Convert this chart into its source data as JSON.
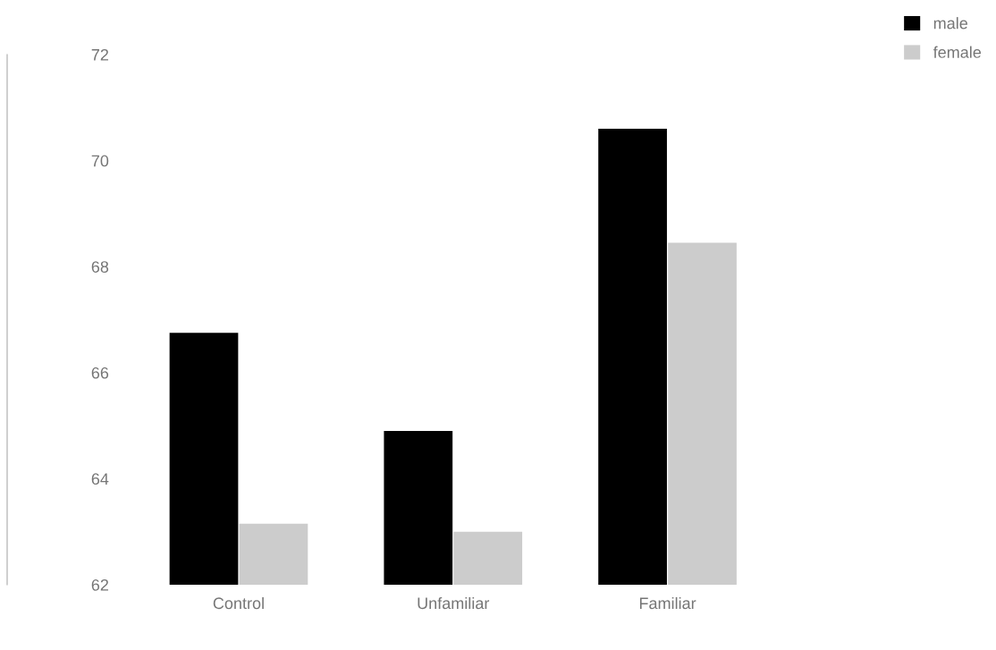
{
  "chart_data": {
    "type": "bar",
    "categories": [
      "Control",
      "Unfamiliar",
      "Familiar"
    ],
    "series": [
      {
        "name": "male",
        "color": "#000000",
        "values": [
          66.75,
          64.9,
          70.6
        ]
      },
      {
        "name": "female",
        "color": "#cccccc",
        "values": [
          63.15,
          63.0,
          68.45
        ]
      }
    ],
    "ylim": [
      62,
      72
    ],
    "yticks": [
      62,
      64,
      66,
      68,
      70,
      72
    ],
    "grid": false,
    "legend": "top right"
  }
}
